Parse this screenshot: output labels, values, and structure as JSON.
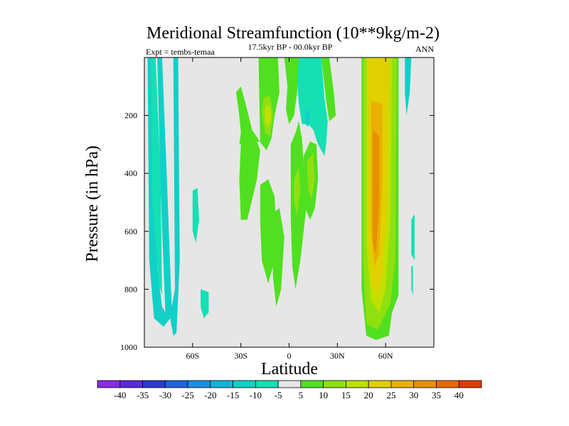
{
  "chart_data": {
    "type": "heatmap",
    "title": "Meridional Streamfunction (10**9kg/m-2)",
    "subtitle": "17.5kyr BP - 00.0kyr BP",
    "left_note": "Expt = tembs-temaa",
    "right_note": "ANN",
    "xlabel": "Latitude",
    "ylabel": "Pressure (in hPa)",
    "xlim": [
      -90,
      90
    ],
    "ylim": [
      1000,
      0
    ],
    "x_ticks": [
      {
        "value": -60,
        "label": "60S"
      },
      {
        "value": -30,
        "label": "30S"
      },
      {
        "value": 0,
        "label": "0"
      },
      {
        "value": 30,
        "label": "30N"
      },
      {
        "value": 60,
        "label": "60N"
      }
    ],
    "y_ticks": [
      {
        "value": 200,
        "label": "200"
      },
      {
        "value": 400,
        "label": "400"
      },
      {
        "value": 600,
        "label": "600"
      },
      {
        "value": 800,
        "label": "800"
      },
      {
        "value": 1000,
        "label": "1000"
      }
    ],
    "colorbar": {
      "levels": [
        -40,
        -35,
        -30,
        -25,
        -20,
        -15,
        -10,
        -5,
        5,
        10,
        15,
        20,
        25,
        30,
        35,
        40
      ],
      "labels": [
        "-40",
        "-35",
        "-30",
        "-25",
        "-20",
        "-15",
        "-10",
        "-5",
        "5",
        "10",
        "15",
        "20",
        "25",
        "30",
        "35",
        "40"
      ],
      "colors": [
        "#8a2be2",
        "#5a2ad8",
        "#2a3ad0",
        "#1e64d8",
        "#1a8ee0",
        "#10b4d8",
        "#10d0c8",
        "#14e0b4",
        "#e6e6e6",
        "#50e020",
        "#90e010",
        "#c0e000",
        "#e0d000",
        "#e8b000",
        "#e89000",
        "#e86a00",
        "#e03c00"
      ]
    },
    "regions": [
      {
        "color": "#10d0c8",
        "points": [
          [
            -88,
            0
          ],
          [
            -85,
            0
          ],
          [
            -82,
            720
          ],
          [
            -79,
            860
          ],
          [
            -77,
            880
          ],
          [
            -80,
            440
          ],
          [
            -82,
            0
          ],
          [
            -79,
            0
          ],
          [
            -76,
            420
          ],
          [
            -74,
            720
          ],
          [
            -73,
            860
          ],
          [
            -71,
            800
          ],
          [
            -72,
            0
          ],
          [
            -69,
            0
          ],
          [
            -68,
            700
          ],
          [
            -70,
            950
          ],
          [
            -72,
            960
          ],
          [
            -74,
            900
          ],
          [
            -78,
            930
          ],
          [
            -84,
            900
          ],
          [
            -87,
            700
          ]
        ]
      },
      {
        "color": "#14e0b4",
        "points": [
          [
            -86,
            0
          ],
          [
            -85,
            500
          ],
          [
            -81,
            780
          ],
          [
            -79,
            820
          ],
          [
            -80,
            400
          ],
          [
            -83,
            0
          ]
        ]
      },
      {
        "color": "#14e0b4",
        "points": [
          [
            -60,
            460
          ],
          [
            -57,
            450
          ],
          [
            -56,
            560
          ],
          [
            -58,
            640
          ],
          [
            -60,
            600
          ]
        ]
      },
      {
        "color": "#14e0b4",
        "points": [
          [
            -55,
            800
          ],
          [
            -50,
            810
          ],
          [
            -50,
            880
          ],
          [
            -53,
            900
          ],
          [
            -55,
            860
          ]
        ]
      },
      {
        "color": "#50e020",
        "points": [
          [
            -19,
            0
          ],
          [
            -7,
            0
          ],
          [
            -6,
            120
          ],
          [
            -9,
            200
          ],
          [
            -11,
            280
          ],
          [
            -14,
            320
          ],
          [
            -17,
            300
          ],
          [
            -23,
            250
          ],
          [
            -27,
            160
          ],
          [
            -30,
            100
          ],
          [
            -33,
            120
          ],
          [
            -31,
            200
          ],
          [
            -30,
            260
          ],
          [
            -31,
            300
          ],
          [
            -18,
            290
          ]
        ]
      },
      {
        "color": "#50e020",
        "points": [
          [
            -30,
            300
          ],
          [
            -22,
            260
          ],
          [
            -18,
            320
          ],
          [
            -20,
            420
          ],
          [
            -26,
            560
          ],
          [
            -30,
            560
          ],
          [
            -31,
            420
          ]
        ]
      },
      {
        "color": "#50e020",
        "points": [
          [
            -18,
            440
          ],
          [
            -13,
            420
          ],
          [
            -9,
            480
          ],
          [
            -8,
            600
          ],
          [
            -10,
            720
          ],
          [
            -13,
            780
          ],
          [
            -17,
            700
          ],
          [
            -18,
            560
          ]
        ]
      },
      {
        "color": "#50e020",
        "points": [
          [
            -11,
            540
          ],
          [
            -6,
            520
          ],
          [
            -3,
            620
          ],
          [
            -5,
            800
          ],
          [
            -8,
            860
          ],
          [
            -10,
            760
          ]
        ]
      },
      {
        "color": "#50e020",
        "points": [
          [
            -3,
            0
          ],
          [
            6,
            0
          ],
          [
            5,
            120
          ],
          [
            3,
            200
          ],
          [
            0,
            230
          ],
          [
            -2,
            180
          ],
          [
            -1,
            100
          ]
        ]
      },
      {
        "color": "#50e020",
        "points": [
          [
            1,
            300
          ],
          [
            4,
            260
          ],
          [
            6,
            220
          ],
          [
            8,
            280
          ],
          [
            9,
            360
          ],
          [
            11,
            500
          ],
          [
            9,
            600
          ],
          [
            7,
            700
          ],
          [
            4,
            800
          ],
          [
            2,
            720
          ],
          [
            1,
            560
          ]
        ]
      },
      {
        "color": "#50e020",
        "points": [
          [
            9,
            340
          ],
          [
            13,
            290
          ],
          [
            17,
            300
          ],
          [
            18,
            420
          ],
          [
            16,
            520
          ],
          [
            13,
            560
          ],
          [
            10,
            520
          ]
        ]
      },
      {
        "color": "#14e0b4",
        "points": [
          [
            6,
            0
          ],
          [
            20,
            0
          ],
          [
            22,
            140
          ],
          [
            24,
            220
          ],
          [
            23,
            300
          ],
          [
            22,
            340
          ],
          [
            18,
            300
          ],
          [
            15,
            250
          ],
          [
            12,
            230
          ],
          [
            8,
            230
          ],
          [
            6,
            160
          ],
          [
            5,
            80
          ]
        ]
      },
      {
        "color": "#50e020",
        "points": [
          [
            20,
            0
          ],
          [
            25,
            0
          ],
          [
            28,
            130
          ],
          [
            29,
            200
          ],
          [
            25,
            220
          ],
          [
            23,
            150
          ]
        ]
      },
      {
        "color": "#10d0c8",
        "points": [
          [
            10,
            180
          ],
          [
            13,
            190
          ],
          [
            12,
            240
          ],
          [
            10,
            230
          ]
        ]
      },
      {
        "color": "#50e020",
        "points": [
          [
            45,
            0
          ],
          [
            68,
            0
          ],
          [
            68,
            820
          ],
          [
            64,
            880
          ],
          [
            62,
            960
          ],
          [
            54,
            975
          ],
          [
            48,
            960
          ],
          [
            45,
            800
          ]
        ]
      },
      {
        "color": "#90e010",
        "points": [
          [
            46,
            0
          ],
          [
            67,
            0
          ],
          [
            66,
            700
          ],
          [
            63,
            850
          ],
          [
            55,
            940
          ],
          [
            48,
            920
          ],
          [
            46,
            700
          ]
        ]
      },
      {
        "color": "#c0e000",
        "points": [
          [
            48,
            0
          ],
          [
            64,
            0
          ],
          [
            63,
            560
          ],
          [
            60,
            800
          ],
          [
            56,
            880
          ],
          [
            51,
            840
          ],
          [
            48,
            650
          ]
        ]
      },
      {
        "color": "#e0d000",
        "points": [
          [
            49,
            0
          ],
          [
            62,
            0
          ],
          [
            61,
            500
          ],
          [
            58,
            740
          ],
          [
            55,
            820
          ],
          [
            51,
            780
          ],
          [
            49,
            600
          ]
        ]
      },
      {
        "color": "#e8b000",
        "points": [
          [
            51,
            150
          ],
          [
            58,
            160
          ],
          [
            58,
            420
          ],
          [
            56,
            680
          ],
          [
            53,
            720
          ],
          [
            51,
            600
          ]
        ]
      },
      {
        "color": "#e89000",
        "points": [
          [
            52,
            250
          ],
          [
            56,
            270
          ],
          [
            56,
            500
          ],
          [
            54,
            680
          ],
          [
            52,
            640
          ]
        ]
      },
      {
        "color": "#90e010",
        "points": [
          [
            -16,
            140
          ],
          [
            -12,
            130
          ],
          [
            -10,
            200
          ],
          [
            -12,
            270
          ],
          [
            -15,
            260
          ],
          [
            -17,
            190
          ]
        ]
      },
      {
        "color": "#c0e000",
        "points": [
          [
            -15,
            170
          ],
          [
            -12,
            165
          ],
          [
            -11,
            210
          ],
          [
            -13,
            240
          ],
          [
            -15,
            220
          ]
        ]
      },
      {
        "color": "#90e010",
        "points": [
          [
            11,
            360
          ],
          [
            15,
            330
          ],
          [
            16,
            420
          ],
          [
            14,
            490
          ],
          [
            12,
            460
          ]
        ]
      },
      {
        "color": "#90e010",
        "points": [
          [
            3,
            420
          ],
          [
            6,
            380
          ],
          [
            7,
            460
          ],
          [
            5,
            540
          ],
          [
            3,
            500
          ]
        ]
      },
      {
        "color": "#10d0c8",
        "points": [
          [
            72,
            0
          ],
          [
            76,
            0
          ],
          [
            75,
            120
          ],
          [
            73,
            200
          ],
          [
            72,
            120
          ]
        ]
      },
      {
        "color": "#14e0b4",
        "points": [
          [
            76,
            560
          ],
          [
            78,
            540
          ],
          [
            78,
            700
          ],
          [
            76,
            680
          ]
        ]
      },
      {
        "color": "#14e0b4",
        "points": [
          [
            76,
            720
          ],
          [
            77,
            720
          ],
          [
            77,
            820
          ],
          [
            76,
            800
          ]
        ]
      }
    ]
  }
}
